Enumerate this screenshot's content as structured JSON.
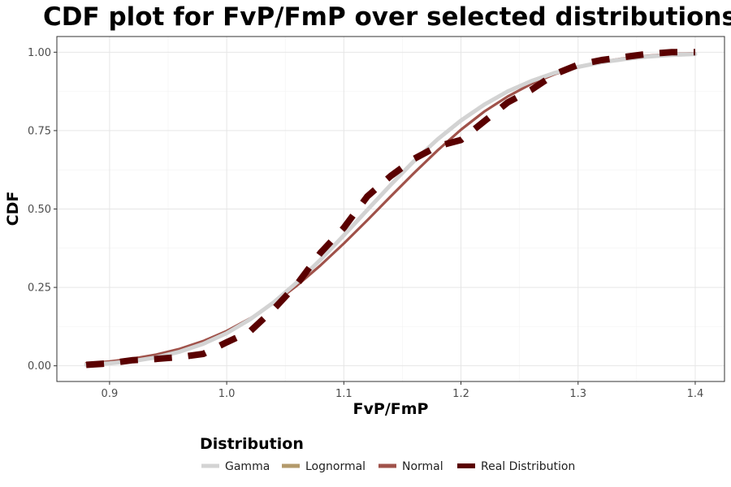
{
  "chart_data": {
    "type": "line",
    "title": "CDF plot for FvP/FmP over selected distributions",
    "xlabel": "FvP/FmP",
    "ylabel": "CDF",
    "xlim": [
      0.855,
      1.425
    ],
    "ylim": [
      -0.05,
      1.05
    ],
    "x_ticks": [
      0.9,
      1.0,
      1.1,
      1.2,
      1.3,
      1.4
    ],
    "x_tick_labels": [
      "0.9",
      "1.0",
      "1.1",
      "1.2",
      "1.3",
      "1.4"
    ],
    "y_ticks": [
      0.0,
      0.25,
      0.5,
      0.75,
      1.0
    ],
    "y_tick_labels": [
      "0.00",
      "0.25",
      "0.50",
      "0.75",
      "1.00"
    ],
    "grid": true,
    "legend_title": "Distribution",
    "legend_position": "bottom",
    "series": [
      {
        "name": "Gamma",
        "color": "#d3d3d3",
        "dashed": false,
        "x": [
          0.88,
          0.9,
          0.92,
          0.94,
          0.96,
          0.98,
          1.0,
          1.02,
          1.04,
          1.06,
          1.08,
          1.1,
          1.12,
          1.14,
          1.16,
          1.18,
          1.2,
          1.22,
          1.24,
          1.26,
          1.28,
          1.3,
          1.32,
          1.34,
          1.36,
          1.38,
          1.4
        ],
        "y": [
          0.003,
          0.008,
          0.015,
          0.027,
          0.045,
          0.07,
          0.104,
          0.148,
          0.202,
          0.266,
          0.338,
          0.416,
          0.497,
          0.577,
          0.653,
          0.722,
          0.782,
          0.833,
          0.875,
          0.908,
          0.934,
          0.953,
          0.968,
          0.978,
          0.986,
          0.991,
          0.994
        ]
      },
      {
        "name": "Lognormal",
        "color": "#b39a6b",
        "dashed": false,
        "x": [
          0.88,
          0.9,
          0.92,
          0.94,
          0.96,
          0.98,
          1.0,
          1.02,
          1.04,
          1.06,
          1.08,
          1.1,
          1.12,
          1.14,
          1.16,
          1.18,
          1.2,
          1.22,
          1.24,
          1.26,
          1.28,
          1.3,
          1.32,
          1.34,
          1.36,
          1.38,
          1.4
        ],
        "y": [
          0.002,
          0.007,
          0.014,
          0.026,
          0.044,
          0.069,
          0.103,
          0.147,
          0.201,
          0.265,
          0.337,
          0.415,
          0.496,
          0.577,
          0.654,
          0.723,
          0.784,
          0.835,
          0.877,
          0.91,
          0.936,
          0.955,
          0.969,
          0.979,
          0.986,
          0.991,
          0.994
        ]
      },
      {
        "name": "Normal",
        "color": "#a0524a",
        "dashed": false,
        "x": [
          0.88,
          0.9,
          0.92,
          0.94,
          0.96,
          0.98,
          1.0,
          1.02,
          1.04,
          1.06,
          1.08,
          1.1,
          1.12,
          1.14,
          1.16,
          1.18,
          1.2,
          1.22,
          1.24,
          1.26,
          1.28,
          1.3,
          1.32,
          1.34,
          1.36,
          1.38,
          1.4
        ],
        "y": [
          0.008,
          0.014,
          0.023,
          0.036,
          0.054,
          0.079,
          0.111,
          0.151,
          0.199,
          0.256,
          0.32,
          0.39,
          0.464,
          0.54,
          0.615,
          0.687,
          0.753,
          0.811,
          0.859,
          0.899,
          0.93,
          0.953,
          0.97,
          0.981,
          0.989,
          0.994,
          0.997
        ]
      },
      {
        "name": "Real Distribution",
        "color": "#5a0000",
        "dashed": true,
        "x": [
          0.88,
          0.9,
          0.92,
          0.94,
          0.96,
          0.98,
          1.0,
          1.02,
          1.04,
          1.06,
          1.08,
          1.1,
          1.12,
          1.14,
          1.16,
          1.18,
          1.2,
          1.22,
          1.24,
          1.26,
          1.28,
          1.3,
          1.32,
          1.34,
          1.36,
          1.38,
          1.4
        ],
        "y": [
          0.003,
          0.008,
          0.018,
          0.022,
          0.028,
          0.038,
          0.075,
          0.11,
          0.18,
          0.26,
          0.36,
          0.44,
          0.54,
          0.605,
          0.66,
          0.7,
          0.72,
          0.78,
          0.84,
          0.88,
          0.93,
          0.96,
          0.975,
          0.985,
          0.995,
          1.0,
          1.0
        ]
      }
    ]
  }
}
